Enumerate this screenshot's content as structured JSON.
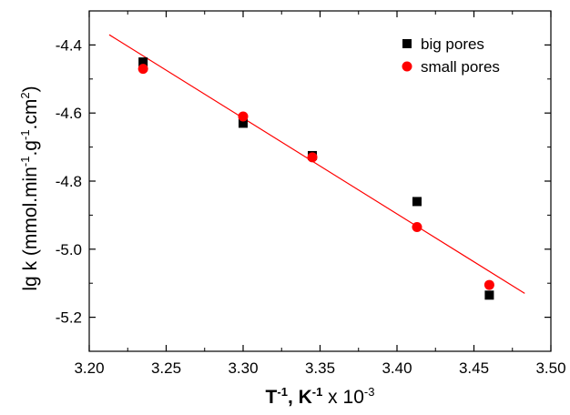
{
  "chart_data": {
    "type": "scatter",
    "x_axis": {
      "range": [
        3.2,
        3.5
      ],
      "ticks": [
        3.2,
        3.25,
        3.3,
        3.35,
        3.4,
        3.45,
        3.5
      ],
      "tick_labels": [
        "3.20",
        "3.25",
        "3.30",
        "3.35",
        "3.40",
        "3.45",
        "3.50"
      ],
      "label_parts": [
        {
          "text": "T",
          "bold": true
        },
        {
          "text": "-1",
          "bold": true,
          "sup": true
        },
        {
          "text": ", K",
          "bold": true
        },
        {
          "text": "-1",
          "bold": true,
          "sup": true
        },
        {
          "text": " x 10",
          "bold": false
        },
        {
          "text": "-3",
          "bold": false,
          "sup": true
        }
      ]
    },
    "y_axis": {
      "range": [
        -5.3,
        -4.3
      ],
      "ticks": [
        -4.4,
        -4.6,
        -4.8,
        -5.0,
        -5.2
      ],
      "tick_labels": [
        "-4.4",
        "-4.6",
        "-4.8",
        "-5.0",
        "-5.2"
      ],
      "label_parts": [
        {
          "text": "lg k (mmol.min"
        },
        {
          "text": "-1",
          "sup": true
        },
        {
          "text": ".g"
        },
        {
          "text": "-1",
          "sup": true
        },
        {
          "text": ".cm"
        },
        {
          "text": "2",
          "sup": true
        },
        {
          "text": ")"
        }
      ]
    },
    "series": [
      {
        "name": "big pores",
        "marker": "square",
        "color": "#000000",
        "points": [
          [
            3.235,
            -4.45
          ],
          [
            3.3,
            -4.63
          ],
          [
            3.345,
            -4.725
          ],
          [
            3.413,
            -4.86
          ],
          [
            3.46,
            -5.135
          ]
        ]
      },
      {
        "name": "small pores",
        "marker": "circle",
        "color": "#ff0000",
        "points": [
          [
            3.235,
            -4.47
          ],
          [
            3.3,
            -4.61
          ],
          [
            3.345,
            -4.73
          ],
          [
            3.413,
            -4.935
          ],
          [
            3.46,
            -5.105
          ]
        ]
      }
    ],
    "fit_line": {
      "color": "#ff0000",
      "points": [
        [
          3.213,
          -4.37
        ],
        [
          3.483,
          -5.13
        ]
      ]
    },
    "grid": false,
    "legend_position": "top-right"
  }
}
